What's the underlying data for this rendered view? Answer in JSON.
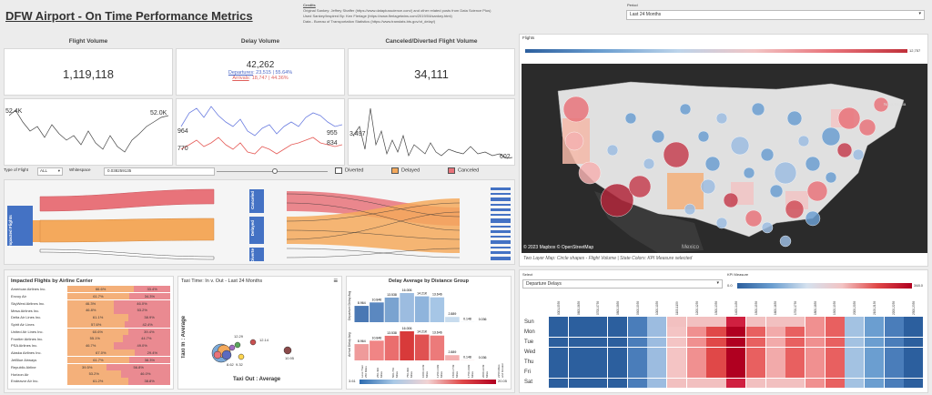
{
  "header": {
    "title": "DFW Airport - On Time Performance Metrics",
    "credits_heading": "Credits",
    "credits_lines": [
      "Original Sankey: Jeffrey Shaffer (https://www.dataplusscience.com/) and other related posts from Data Science Plus)",
      "Used Sankey/Inspired By: Ken Flerlage (https://www.flerlagetwins.com/2019/04/sankey.html)",
      "Data - Bureau of Transportation Statistics (https://www.transtats.bts.gov/ot_delay/)"
    ],
    "period_label": "Period",
    "period_value": "Last 24 Months"
  },
  "kpis": {
    "flight_volume_label": "Flight Volume",
    "flight_volume_value": "1,119,118",
    "delay_volume_label": "Delay Volume",
    "delay_volume_value": "42,262",
    "departures_label": "Departures",
    "departures_value": ": 23,515 | 55.64%",
    "arrivals_label": "Arrivals",
    "arrivals_value": ": 18,747 | 44.36%",
    "canceled_label": "Canceled/Diverted Flight Volume",
    "canceled_value": "34,111"
  },
  "sparklines": {
    "flight": {
      "start_label": "52.4K",
      "end_label": "52.0K"
    },
    "delay": {
      "blue_start": "964",
      "red_start": "770",
      "blue_end": "955",
      "red_end": "834"
    },
    "canceled": {
      "start_label": "3,497",
      "end_label": "602"
    }
  },
  "controls": {
    "type_label": "Type of Flight",
    "type_value": "ALL",
    "whitespace_label": "Whitespace",
    "whitespace_value": "0.038259135",
    "legend_diverted": "Diverted",
    "legend_delayed": "Delayed",
    "legend_canceled": "Canceled",
    "color_diverted": "#ffffff",
    "color_delayed": "#f4a95c",
    "color_canceled": "#e8737a"
  },
  "sankey": {
    "left_label": "Impacted Flights",
    "mid_labels": [
      "Canceled",
      "Delayed",
      "Diverte"
    ]
  },
  "airlines": {
    "title": "Impacted Flights by Airline Carrier",
    "rows": [
      {
        "name": "American Airlines Inc.",
        "a": "66.6%",
        "b": "33.4%"
      },
      {
        "name": "Envoy Air",
        "a": "61.7%",
        "b": "34.3%"
      },
      {
        "name": "SkyWest Airlines Inc.",
        "a": "46.3%",
        "b": "46.0%"
      },
      {
        "name": "Mesa Airlines Inc.",
        "a": "46.8%",
        "b": "53.2%"
      },
      {
        "name": "Delta Air Lines Inc.",
        "a": "61.1%",
        "b": "38.9%"
      },
      {
        "name": "Spirit Air Lines",
        "a": "57.6%",
        "b": "42.4%"
      },
      {
        "name": "United Air Lines Inc.",
        "a": "60.6%",
        "b": "39.4%"
      },
      {
        "name": "Frontier Airlines Inc.",
        "a": "55.1%",
        "b": "44.7%"
      },
      {
        "name": "PSA Airlines Inc.",
        "a": "46.7%",
        "b": "49.0%"
      },
      {
        "name": "Alaska Airlines Inc.",
        "a": "67.0%",
        "b": "29.4%"
      },
      {
        "name": "JetBlue Airways",
        "a": "61.7%",
        "b": "38.3%"
      },
      {
        "name": "Republic Airline",
        "a": "39.5%",
        "b": "56.8%"
      },
      {
        "name": "Horizon Air",
        "a": "53.2%",
        "b": "46.0%"
      },
      {
        "name": "Endeavor Air Inc.",
        "a": "61.2%",
        "b": "38.8%"
      }
    ],
    "first_row_left": "15.3%",
    "first_row_left_row": 11
  },
  "taxi": {
    "title": "Taxi Time: In v. Out - Last 24 Months",
    "y_label": "Taxi In : Average",
    "x_label": "Taxi Out : Average",
    "labels": [
      "12.29",
      "12.14",
      "9.32",
      "10.95",
      "8.62"
    ]
  },
  "distance": {
    "title": "Delay Average by Distance Group",
    "top_axis": "Departure Delay Avg",
    "bottom_axis": "Arrival Delay Avg",
    "categories": [
      "Less Than 250 Miles",
      "250-499 Miles",
      "500-749 Miles",
      "750-999 Miles",
      "1000-1249 Miles",
      "1250-1499 Miles",
      "1500-1749 Miles",
      "1750-1999 Miles",
      "2000-2249 Miles",
      "2250 Miles and Greater"
    ],
    "top_values": [
      8.964,
      10.846,
      13.538,
      16.0,
      14.21,
      13.646,
      2.889,
      0.148,
      0.036,
      0
    ],
    "top_labels": [
      "8.964",
      "10.846",
      "13.538",
      "16.006",
      "14.21K",
      "13.646",
      "2.889",
      "0.148",
      "0.036",
      ""
    ],
    "bottom_values": [
      8.964,
      10.846,
      13.538,
      16.0,
      14.21,
      13.646,
      2.889,
      0.148,
      0.036,
      0
    ],
    "bottom_labels": [
      "8.964",
      "10.846",
      "13.538",
      "16.006",
      "14.21K",
      "13.646",
      "2.889",
      "0.148",
      "0.036",
      ""
    ],
    "scale_min": "3.61",
    "scale_max": "20.05"
  },
  "map": {
    "title": "Flights",
    "scale_max": "12,757",
    "copyright": "© 2023 Mapbox  © OpenStreetMap",
    "country_label": "Mexico",
    "city_label": "Nova Scotia",
    "caption": "Two Layer Map: Circle shapes - Flight Volume  |  State Colors: KPI Measure selected"
  },
  "heatmap": {
    "select_label": "Select",
    "select_value": "Departure Delays",
    "kpi_label": "KPI Measure",
    "kpi_min": "0.0",
    "kpi_max": "348.0",
    "days": [
      "Sun",
      "Mon",
      "Tue",
      "Wed",
      "Thu",
      "Fri",
      "Sat"
    ],
    "hours": [
      "0001-0559",
      "0600-0659",
      "0700-0759",
      "0800-0859",
      "0900-0959",
      "1000-1059",
      "1100-1159",
      "1200-1259",
      "1300-1359",
      "1400-1459",
      "1500-1559",
      "1600-1659",
      "1700-1759",
      "1800-1859",
      "1900-1959",
      "2000-2059",
      "2100-2159",
      "2200-2259",
      "2300-2359"
    ]
  }
}
